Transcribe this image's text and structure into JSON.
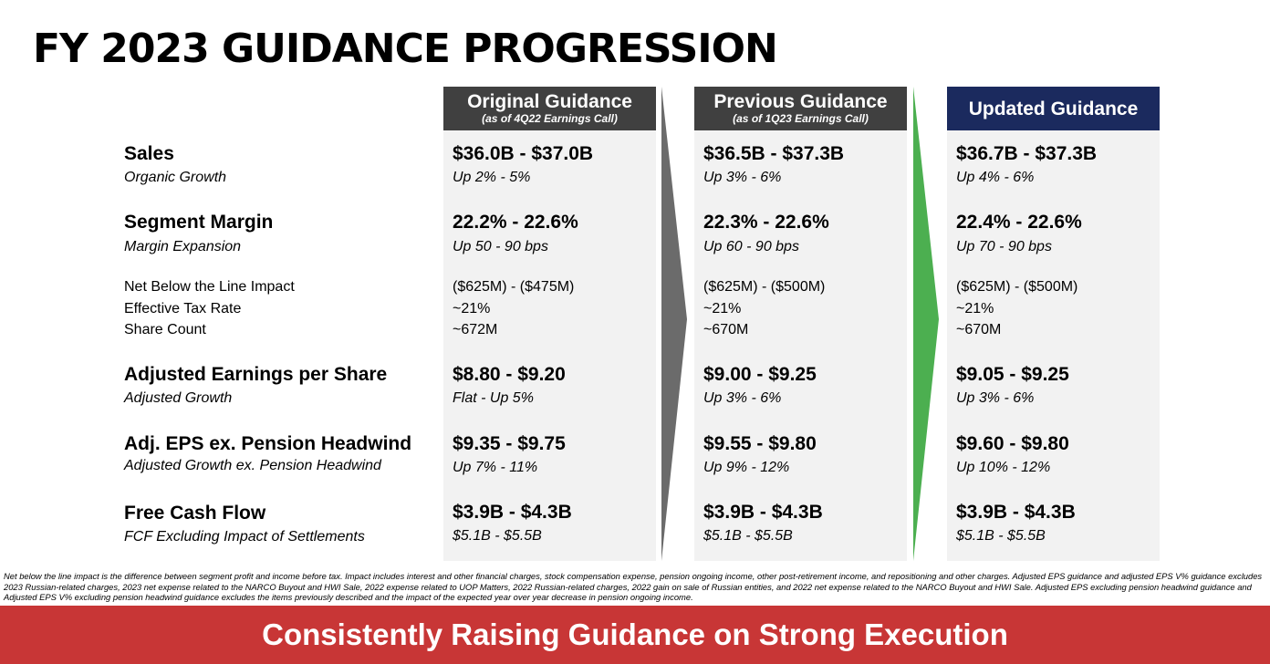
{
  "title": "FY 2023 GUIDANCE PROGRESSION",
  "columns": [
    {
      "header": "Original Guidance",
      "subheader": "(as of 4Q22 Earnings Call)",
      "header_color": "#404040",
      "sales": "$36.0B - $37.0B",
      "organic_growth": "Up 2% - 5%",
      "segment_margin": "22.2% - 22.6%",
      "margin_expansion": "Up 50 - 90 bps",
      "net_below_line": "($625M) - ($475M)",
      "tax_rate": "~21%",
      "share_count": "~672M",
      "eps": "$8.80 - $9.20",
      "eps_growth": "Flat - Up 5%",
      "eps_ex_pension": "$9.35 - $9.75",
      "eps_ex_pension_growth": "Up 7% - 11%",
      "fcf": "$3.9B - $4.3B",
      "fcf_ex_settlements": "$5.1B - $5.5B"
    },
    {
      "header": "Previous Guidance",
      "subheader": "(as of 1Q23 Earnings Call)",
      "header_color": "#404040",
      "sales": "$36.5B - $37.3B",
      "organic_growth": "Up 3% - 6%",
      "segment_margin": "22.3% - 22.6%",
      "margin_expansion": "Up 60 - 90 bps",
      "net_below_line": "($625M) - ($500M)",
      "tax_rate": "~21%",
      "share_count": "~670M",
      "eps": "$9.00 - $9.25",
      "eps_growth": "Up 3% - 6%",
      "eps_ex_pension": "$9.55 - $9.80",
      "eps_ex_pension_growth": "Up 9% - 12%",
      "fcf": "$3.9B - $4.3B",
      "fcf_ex_settlements": "$5.1B - $5.5B"
    },
    {
      "header": "Updated Guidance",
      "subheader": "",
      "header_color": "#1b2a5e",
      "sales": "$36.7B - $37.3B",
      "organic_growth": "Up 4% - 6%",
      "segment_margin": "22.4% - 22.6%",
      "margin_expansion": "Up 70 - 90 bps",
      "net_below_line": "($625M) - ($500M)",
      "tax_rate": "~21%",
      "share_count": "~670M",
      "eps": "$9.05 - $9.25",
      "eps_growth": "Up 3% - 6%",
      "eps_ex_pension": "$9.60 - $9.80",
      "eps_ex_pension_growth": "Up 10% - 12%",
      "fcf": "$3.9B - $4.3B",
      "fcf_ex_settlements": "$5.1B - $5.5B"
    }
  ],
  "rows": {
    "sales": "Sales",
    "organic_growth": "Organic Growth",
    "segment_margin": "Segment Margin",
    "margin_expansion": "Margin Expansion",
    "net_below_line": "Net Below the Line Impact",
    "tax_rate": "Effective Tax Rate",
    "share_count": "Share Count",
    "eps": "Adjusted Earnings per Share",
    "eps_growth": "Adjusted Growth",
    "eps_ex_pension": "Adj. EPS ex. Pension Headwind",
    "eps_ex_pension_growth": "Adjusted Growth ex. Pension Headwind",
    "fcf": "Free Cash Flow",
    "fcf_ex_settlements": "FCF Excluding Impact of Settlements"
  },
  "arrows": {
    "first_color": "#6b6b6b",
    "second_color": "#4caf50"
  },
  "footnote": "Net below the line impact is the difference between segment profit and income before tax. Impact includes interest and other financial charges, stock compensation expense, pension ongoing income, other post-retirement income, and repositioning and other charges. Adjusted EPS guidance and adjusted EPS V% guidance excludes 2023 Russian-related charges, 2023 net expense related to the NARCO Buyout and HWI Sale, 2022 expense related to UOP Matters, 2022 Russian-related charges, 2022 gain on sale of Russian entities, and 2022 net expense related to the NARCO Buyout and HWI Sale. Adjusted EPS excluding pension headwind guidance and Adjusted EPS V% excluding pension headwind guidance excludes the items previously described and the impact of the expected year over year decrease in pension ongoing income.",
  "banner": {
    "text": "Consistently Raising Guidance on Strong Execution",
    "color": "#c83636"
  }
}
